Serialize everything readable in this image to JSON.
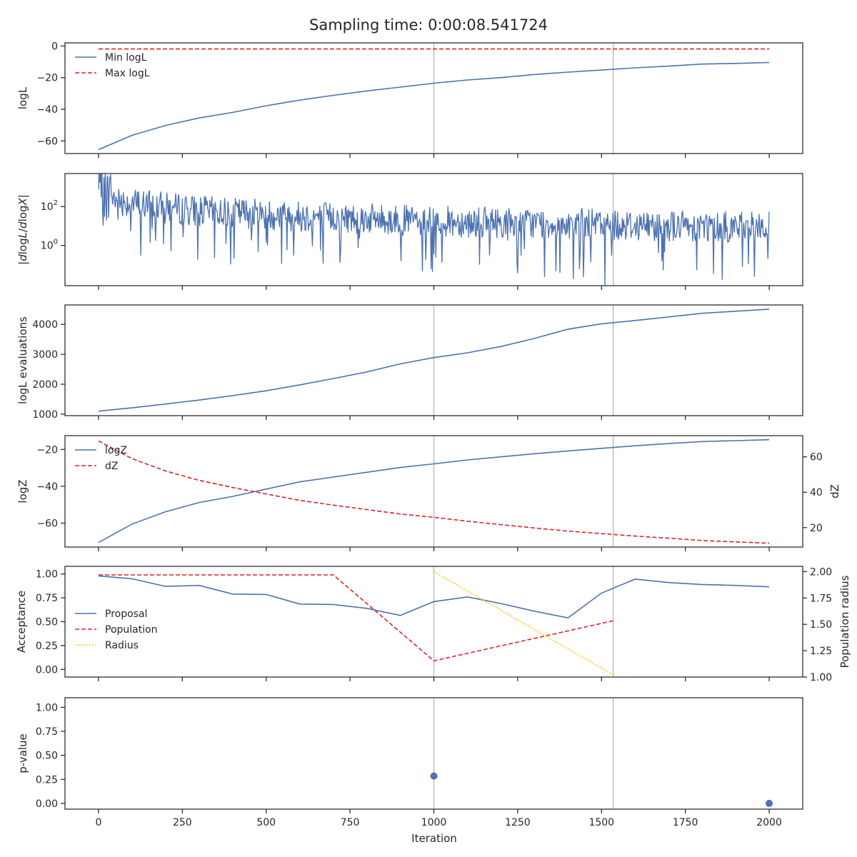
{
  "title": "Sampling time: 0:00:08.541724",
  "xlabel": "Iteration",
  "x_ticks": [
    0,
    250,
    500,
    750,
    1000,
    1250,
    1500,
    1750,
    2000
  ],
  "xlim": [
    -100,
    2100
  ],
  "vlines": [
    1000,
    1535
  ],
  "colors": {
    "blue": "#4c72b0",
    "red": "#d62728",
    "yellow": "#ffcc00",
    "vline": "#bfbfbf",
    "axis": "#262626"
  },
  "chart_data": [
    {
      "type": "line",
      "ylabel": "logL",
      "ylim": [
        -68,
        2
      ],
      "y_ticks": [
        0,
        -20,
        -40,
        -60
      ],
      "legend": "upper-left",
      "series": [
        {
          "name": "Min logL",
          "style": "solid",
          "color": "#4c72b0",
          "x": [
            0,
            100,
            200,
            300,
            400,
            500,
            600,
            700,
            800,
            900,
            1000,
            1100,
            1200,
            1300,
            1400,
            1500,
            1600,
            1700,
            1800,
            1900,
            2000
          ],
          "y": [
            -65.5,
            -56.5,
            -50.2,
            -45.5,
            -42,
            -37.8,
            -34.2,
            -31.2,
            -28.4,
            -26,
            -23.5,
            -21.5,
            -20,
            -18,
            -16.5,
            -15.2,
            -13.8,
            -12.7,
            -11.4,
            -11,
            -10.4
          ]
        },
        {
          "name": "Max logL",
          "style": "dashed",
          "color": "#d62728",
          "x": [
            0,
            2000
          ],
          "y": [
            -1.9,
            -1.9
          ]
        }
      ]
    },
    {
      "type": "line",
      "ylabel": "|dlogL/dlogX|",
      "yscale": "log",
      "ylim": [
        0.0085,
        5000
      ],
      "y_ticks": [
        {
          "value": 1,
          "base": "10",
          "exp": "0"
        },
        {
          "value": 100,
          "base": "10",
          "exp": "2"
        }
      ],
      "series": [
        {
          "name": "",
          "style": "solid",
          "color": "#4c72b0",
          "kind": "noise",
          "x": [
            0,
            100,
            200,
            300,
            400,
            500,
            600,
            700,
            800,
            900,
            1000,
            1100,
            1200,
            1300,
            1400,
            1500,
            1600,
            1700,
            1800,
            1900,
            2000
          ],
          "y": [
            400,
            150,
            90,
            60,
            50,
            40,
            32,
            28,
            24,
            20,
            18,
            16,
            15,
            14,
            13,
            12,
            11,
            10,
            10,
            9,
            9
          ]
        }
      ]
    },
    {
      "type": "line",
      "ylabel": "logL evaluations",
      "ylim": [
        950,
        4650
      ],
      "y_ticks": [
        1000,
        2000,
        3000,
        4000
      ],
      "series": [
        {
          "name": "",
          "style": "solid",
          "color": "#4c72b0",
          "x": [
            0,
            100,
            200,
            300,
            400,
            500,
            600,
            700,
            800,
            900,
            1000,
            1100,
            1200,
            1300,
            1400,
            1500,
            1600,
            1700,
            1800,
            1900,
            2000
          ],
          "y": [
            1100,
            1210,
            1340,
            1470,
            1620,
            1780,
            1980,
            2190,
            2410,
            2680,
            2890,
            3050,
            3260,
            3530,
            3840,
            4020,
            4130,
            4250,
            4370,
            4440,
            4510
          ]
        }
      ]
    },
    {
      "type": "line",
      "ylabel": "logZ",
      "ylabel_right": "dZ",
      "ylim": [
        -73,
        -12.5
      ],
      "ylim_right": [
        9,
        72
      ],
      "y_ticks": [
        -20,
        -40,
        -60
      ],
      "y_ticks_right": [
        60,
        40,
        20
      ],
      "legend": "upper-left",
      "series": [
        {
          "name": "logZ",
          "style": "solid",
          "color": "#4c72b0",
          "axis": "left",
          "x": [
            0,
            100,
            200,
            300,
            400,
            500,
            600,
            700,
            800,
            900,
            1000,
            1100,
            1200,
            1300,
            1400,
            1500,
            1600,
            1700,
            1800,
            1900,
            2000
          ],
          "y": [
            -70.5,
            -60.5,
            -53.8,
            -48.8,
            -45.5,
            -41.5,
            -37.6,
            -35,
            -32.4,
            -29.8,
            -27.8,
            -25.7,
            -24,
            -22.3,
            -20.8,
            -19.4,
            -18,
            -16.8,
            -15.7,
            -15.2,
            -14.7
          ]
        },
        {
          "name": "dZ",
          "style": "dashed",
          "color": "#d62728",
          "axis": "right",
          "x": [
            0,
            100,
            200,
            300,
            400,
            500,
            600,
            700,
            800,
            900,
            1000,
            1100,
            1200,
            1300,
            1400,
            1500,
            1600,
            1700,
            1800,
            1900,
            2000
          ],
          "y": [
            69,
            59,
            52,
            46.7,
            42.7,
            39,
            35.4,
            32.7,
            30.2,
            27.7,
            25.8,
            23.6,
            21.7,
            19.8,
            18,
            16.6,
            15.2,
            14,
            12.7,
            11.9,
            11.2
          ]
        }
      ]
    },
    {
      "type": "line",
      "ylabel": "Acceptance",
      "ylabel_right": "Population radius",
      "ylim": [
        -0.08,
        1.08
      ],
      "ylim_right": [
        1.0,
        2.05
      ],
      "y_ticks": [
        1.0,
        0.75,
        0.5,
        0.25,
        0.0
      ],
      "y_tick_labels": [
        "1.00",
        "0.75",
        "0.50",
        "0.25",
        "0.00"
      ],
      "y_ticks_right": [
        2.0,
        1.75,
        1.5,
        1.25,
        1.0
      ],
      "y_tick_labels_right": [
        "2.00",
        "1.75",
        "1.50",
        "1.25",
        "1.00"
      ],
      "legend": "lower-left",
      "series": [
        {
          "name": "Proposal",
          "style": "solid",
          "color": "#4c72b0",
          "axis": "left",
          "x": [
            0,
            100,
            200,
            300,
            400,
            500,
            600,
            700,
            800,
            900,
            1000,
            1100,
            1200,
            1300,
            1400,
            1500,
            1600,
            1700,
            1800,
            1900,
            2000
          ],
          "y": [
            0.98,
            0.95,
            0.87,
            0.88,
            0.79,
            0.785,
            0.685,
            0.68,
            0.64,
            0.565,
            0.71,
            0.76,
            0.69,
            0.61,
            0.54,
            0.8,
            0.945,
            0.91,
            0.89,
            0.88,
            0.865
          ]
        },
        {
          "name": "Population",
          "style": "dashed",
          "color": "#d62728",
          "axis": "left",
          "x": [
            0,
            700,
            1000,
            1535
          ],
          "y": [
            0.99,
            0.99,
            0.09,
            0.51
          ]
        },
        {
          "name": "Radius",
          "style": "dotted",
          "color": "#ffcc00",
          "axis": "right",
          "x": [
            1000,
            1535
          ],
          "y": [
            2.0,
            1.02
          ]
        }
      ]
    },
    {
      "type": "scatter",
      "ylabel": "p-value",
      "ylim": [
        -0.06,
        1.1
      ],
      "y_ticks": [
        1.0,
        0.75,
        0.5,
        0.25,
        0.0
      ],
      "y_tick_labels": [
        "1.00",
        "0.75",
        "0.50",
        "0.25",
        "0.00"
      ],
      "series": [
        {
          "name": "",
          "color": "#4c72b0",
          "x": [
            1000,
            2000
          ],
          "y": [
            0.285,
            0.0
          ]
        }
      ]
    }
  ]
}
